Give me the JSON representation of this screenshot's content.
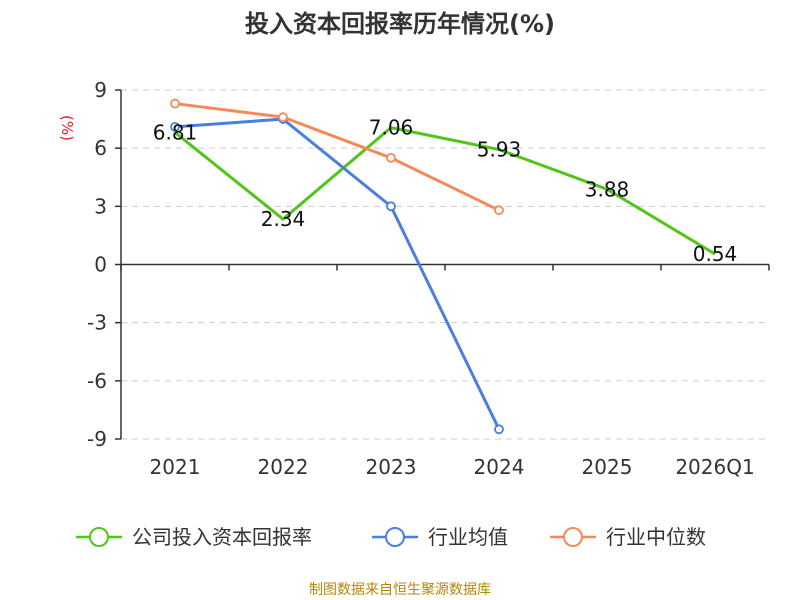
{
  "title": "投入资本回报率历年情况(%)",
  "source": "制图数据来自恒生聚源数据库",
  "chart_data": {
    "type": "line",
    "title": "投入资本回报率历年情况(%)",
    "ylabel": "(%)",
    "xlabel": "",
    "categories": [
      "2021",
      "2022",
      "2023",
      "2024",
      "2025",
      "2026Q1"
    ],
    "ylim": [
      -9,
      9
    ],
    "yticks": [
      9,
      6,
      3,
      0,
      -3,
      -6,
      -9
    ],
    "grid": true,
    "legend_position": "bottom",
    "series": [
      {
        "name": "公司投入资本回报率",
        "color": "#52c41a",
        "values": [
          6.81,
          2.34,
          7.06,
          5.93,
          3.88,
          0.54
        ],
        "labels": [
          "6.81",
          "2.34",
          "7.06",
          "5.93",
          "3.88",
          "0.54"
        ]
      },
      {
        "name": "行业均值",
        "color": "#4a7fdc",
        "values": [
          7.1,
          7.5,
          3.0,
          -8.5,
          null,
          null
        ]
      },
      {
        "name": "行业中位数",
        "color": "#f5895a",
        "values": [
          8.3,
          7.6,
          5.5,
          2.8,
          null,
          null
        ]
      }
    ]
  }
}
